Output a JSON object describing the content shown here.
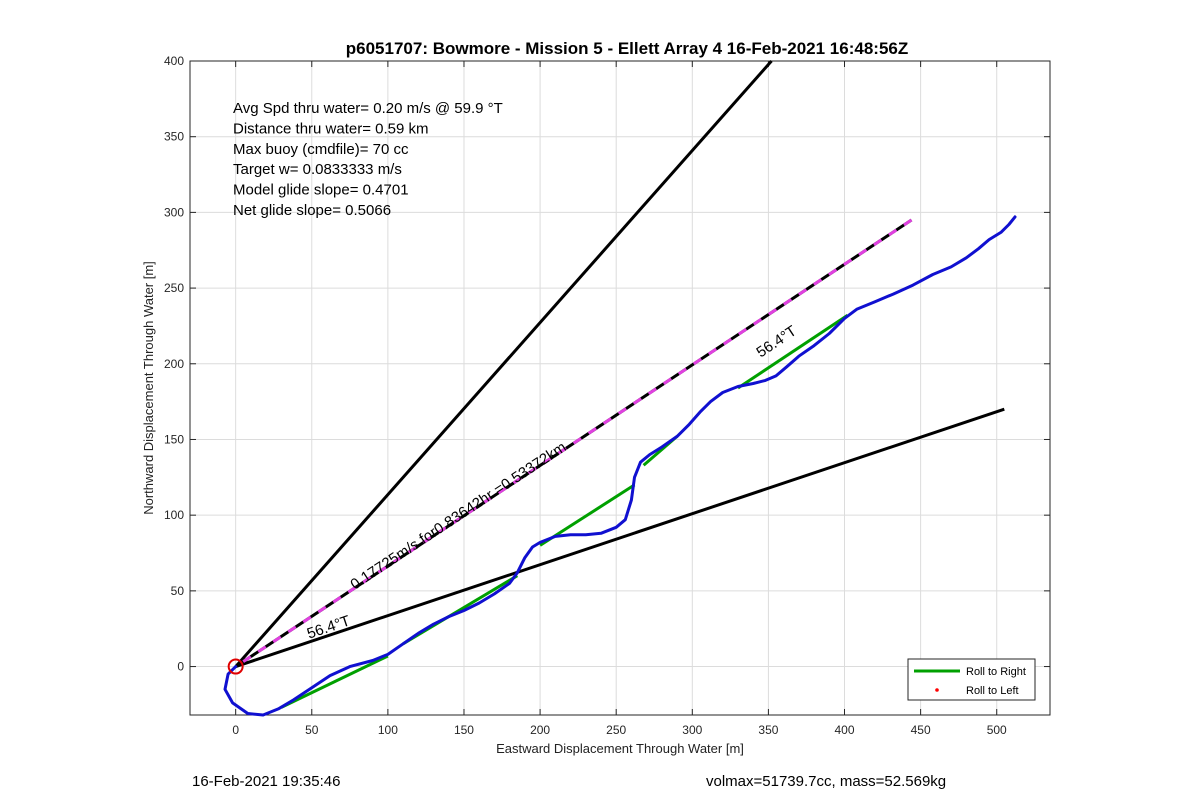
{
  "chart_data": {
    "type": "line",
    "title": "p6051707: Bowmore - Mission 5 - Ellett Array 4 16-Feb-2021 16:48:56Z",
    "xlabel": "Eastward Displacement Through Water [m]",
    "ylabel": "Northward Displacement Through Water [m]",
    "xlim": [
      -30,
      535
    ],
    "ylim": [
      -32,
      400
    ],
    "xticks": [
      0,
      50,
      100,
      150,
      200,
      250,
      300,
      350,
      400,
      450,
      500
    ],
    "yticks": [
      0,
      50,
      100,
      150,
      200,
      250,
      300,
      350,
      400
    ],
    "grid": true,
    "annotations_box": [
      "Avg Spd thru water=  0.20 m/s @  59.9 °T",
      "Distance thru water=  0.59 km",
      "Max buoy (cmdfile)= 70 cc",
      "Target w= 0.0833333 m/s",
      "Model glide slope= 0.4701",
      "Net glide slope= 0.5066"
    ],
    "line_labels": {
      "current": "0.17725m/s for0.83642hr =0.53372km",
      "heading_low": "56.4°T",
      "heading_upper": "56.4°T"
    },
    "series": [
      {
        "name": "Roll to Right",
        "color": "#00a000",
        "segments": [
          [
            [
              30,
              -27
            ],
            [
              100,
              7
            ]
          ],
          [
            [
              110,
              15
            ],
            [
              185,
              60
            ]
          ],
          [
            [
              200,
              80
            ],
            [
              262,
              120
            ]
          ],
          [
            [
              268,
              133
            ],
            [
              290,
              152
            ]
          ],
          [
            [
              330,
              184
            ],
            [
              402,
              232
            ]
          ]
        ]
      },
      {
        "name": "Roll to Left",
        "color": "#ff0000",
        "points": []
      }
    ],
    "glider_track": {
      "color": "#1010d0",
      "points": [
        [
          0,
          0
        ],
        [
          -5,
          -5
        ],
        [
          -7,
          -15
        ],
        [
          -2,
          -24
        ],
        [
          8,
          -31
        ],
        [
          18,
          -32
        ],
        [
          28,
          -28
        ],
        [
          38,
          -22
        ],
        [
          50,
          -14
        ],
        [
          62,
          -6
        ],
        [
          75,
          0
        ],
        [
          90,
          4
        ],
        [
          100,
          8
        ],
        [
          110,
          15
        ],
        [
          120,
          22
        ],
        [
          130,
          28
        ],
        [
          140,
          33
        ],
        [
          150,
          37
        ],
        [
          160,
          42
        ],
        [
          170,
          48
        ],
        [
          180,
          55
        ],
        [
          185,
          62
        ],
        [
          190,
          72
        ],
        [
          195,
          79
        ],
        [
          200,
          82
        ],
        [
          210,
          86
        ],
        [
          220,
          87
        ],
        [
          230,
          87
        ],
        [
          240,
          88
        ],
        [
          250,
          92
        ],
        [
          256,
          97
        ],
        [
          260,
          110
        ],
        [
          262,
          125
        ],
        [
          266,
          135
        ],
        [
          272,
          140
        ],
        [
          280,
          145
        ],
        [
          290,
          152
        ],
        [
          298,
          160
        ],
        [
          305,
          168
        ],
        [
          312,
          175
        ],
        [
          320,
          181
        ],
        [
          330,
          185
        ],
        [
          340,
          187
        ],
        [
          348,
          189
        ],
        [
          355,
          192
        ],
        [
          362,
          198
        ],
        [
          370,
          205
        ],
        [
          380,
          212
        ],
        [
          390,
          220
        ],
        [
          400,
          230
        ],
        [
          408,
          236
        ],
        [
          420,
          241
        ],
        [
          432,
          246
        ],
        [
          445,
          252
        ],
        [
          458,
          259
        ],
        [
          470,
          264
        ],
        [
          480,
          270
        ],
        [
          488,
          276
        ],
        [
          495,
          282
        ],
        [
          503,
          287
        ],
        [
          508,
          292
        ],
        [
          512,
          297
        ]
      ]
    },
    "reference_lines": [
      {
        "name": "upper-bound-line",
        "color": "#000000",
        "points": [
          [
            0,
            0
          ],
          [
            352,
            400
          ]
        ]
      },
      {
        "name": "lower-bound-line",
        "color": "#000000",
        "points": [
          [
            0,
            0
          ],
          [
            505,
            170
          ]
        ]
      },
      {
        "name": "current-vector-line",
        "color": "#000000",
        "dash_color": "#e040e0",
        "points": [
          [
            0,
            0
          ],
          [
            444,
            295
          ]
        ]
      }
    ],
    "start_marker": {
      "x": 0,
      "y": 0,
      "color": "#e00000"
    },
    "legend": {
      "placement": "bottom-right",
      "entries": [
        {
          "label": "Roll to Right",
          "color": "#00a000",
          "style": "line"
        },
        {
          "label": "Roll to Left",
          "color": "#ff0000",
          "style": "dot"
        }
      ]
    }
  },
  "footer": {
    "left": "16-Feb-2021 19:35:46",
    "right": "volmax=51739.7cc, mass=52.569kg"
  }
}
